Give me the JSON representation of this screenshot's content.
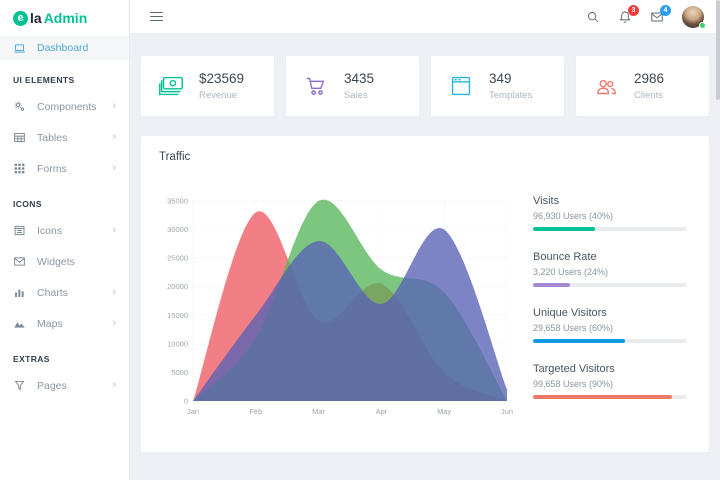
{
  "brand": {
    "initial": "e",
    "name_dark": "la",
    "name_accent": "Admin"
  },
  "sidebar": {
    "active": {
      "label": "Dashboard"
    },
    "sections": [
      {
        "header": "UI ELEMENTS",
        "items": [
          {
            "label": "Components",
            "chevron": "›"
          },
          {
            "label": "Tables",
            "chevron": "›"
          },
          {
            "label": "Forms",
            "chevron": "›"
          }
        ]
      },
      {
        "header": "ICONS",
        "items": [
          {
            "label": "Icons",
            "chevron": "›"
          },
          {
            "label": "Widgets",
            "chevron": ""
          },
          {
            "label": "Charts",
            "chevron": "›"
          },
          {
            "label": "Maps",
            "chevron": "›"
          }
        ]
      },
      {
        "header": "EXTRAS",
        "items": [
          {
            "label": "Pages",
            "chevron": "›"
          }
        ]
      }
    ]
  },
  "topbar": {
    "notification_count": "3",
    "message_count": "4"
  },
  "cards": [
    {
      "value": "$23569",
      "label": "Revenue",
      "icon": "money-icon",
      "color": "#00c292"
    },
    {
      "value": "3435",
      "label": "Sales",
      "icon": "cart-icon",
      "color": "#8e6fd1"
    },
    {
      "value": "349",
      "label": "Templates",
      "icon": "browser-icon",
      "color": "#28b6e8"
    },
    {
      "value": "2986",
      "label": "Clients",
      "icon": "users-icon",
      "color": "#ee7a6b"
    }
  ],
  "traffic": {
    "title": "Traffic",
    "metrics": [
      {
        "label": "Visits",
        "detail": "96,930 Users (40%)",
        "percent": 40,
        "color": "#00c292"
      },
      {
        "label": "Bounce Rate",
        "detail": "3,220 Users (24%)",
        "percent": 24,
        "color": "#a389d4"
      },
      {
        "label": "Unique Visitors",
        "detail": "29,658 Users (60%)",
        "percent": 60,
        "color": "#0e9be2"
      },
      {
        "label": "Targeted Visitors",
        "detail": "99,658 Users (90%)",
        "percent": 90,
        "color": "#ee7a6b"
      }
    ]
  },
  "chart_data": {
    "type": "area",
    "title": "Traffic",
    "categories": [
      "Jan",
      "Feb",
      "Mar",
      "Apr",
      "May",
      "Jun"
    ],
    "series": [
      {
        "name": "red-area",
        "fill": "rgba(237,78,86,0.72)",
        "values": [
          0,
          33000,
          14000,
          20500,
          5000,
          0
        ]
      },
      {
        "name": "green-area",
        "fill": "rgba(81,179,85,0.75)",
        "values": [
          0,
          11000,
          35000,
          23000,
          19000,
          0
        ]
      },
      {
        "name": "purple-area",
        "fill": "rgba(88,97,182,0.78)",
        "values": [
          0,
          15000,
          28000,
          17000,
          30000,
          2000
        ]
      }
    ],
    "xlabel": "",
    "ylabel": "",
    "ylim": [
      0,
      35000
    ],
    "ytick_step": 5000,
    "grid": true,
    "legend": false
  }
}
